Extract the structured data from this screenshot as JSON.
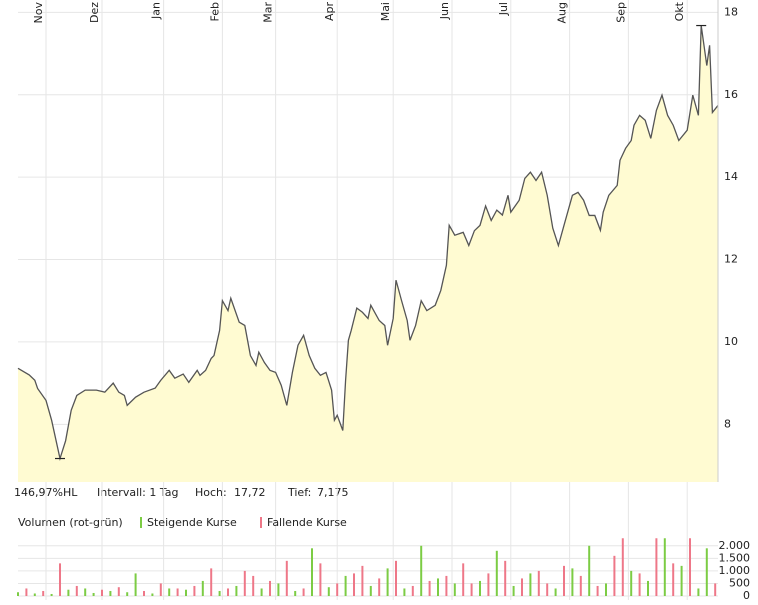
{
  "info": {
    "range": "146,97%HL",
    "interval": "Intervall: 1 Tag",
    "high_label": "Hoch:",
    "high": "17,72",
    "low_label": "Tief:",
    "low": "7,175"
  },
  "chart_data": [
    {
      "type": "area",
      "color": "#555555",
      "fill": "#fffbd2",
      "grid": true,
      "x": [
        0,
        4,
        6,
        7,
        10,
        12,
        15,
        17,
        19,
        21,
        24,
        28,
        31,
        34,
        36,
        38,
        39,
        42,
        45,
        49,
        51,
        54,
        56,
        59,
        61,
        64,
        65,
        67,
        69,
        70,
        72,
        73,
        75,
        76,
        79,
        81,
        83,
        85,
        86,
        88,
        90,
        92,
        94,
        96,
        98,
        100,
        102,
        104,
        106,
        108,
        110,
        112,
        113,
        114,
        116,
        117,
        118,
        119,
        121,
        123,
        125,
        126,
        129,
        131,
        132,
        134,
        135,
        137,
        139,
        140,
        142,
        144,
        146,
        149,
        151,
        153,
        154,
        156,
        159,
        161,
        163,
        165,
        167,
        169,
        171,
        173,
        175,
        176,
        179,
        181,
        183,
        185,
        187,
        189,
        191,
        193,
        195,
        198,
        200,
        202,
        204,
        206,
        208,
        209,
        211,
        214,
        215,
        217,
        219,
        220,
        222,
        224,
        226,
        228,
        230,
        232,
        234,
        236,
        239,
        241,
        243,
        244,
        246,
        247,
        248,
        250
      ],
      "values": [
        9.36,
        9.2,
        9.07,
        8.87,
        8.58,
        8.1,
        7.17,
        7.6,
        8.34,
        8.7,
        8.83,
        8.83,
        8.78,
        9.0,
        8.78,
        8.7,
        8.46,
        8.66,
        8.78,
        8.88,
        9.07,
        9.31,
        9.12,
        9.22,
        9.02,
        9.31,
        9.19,
        9.31,
        9.6,
        9.67,
        10.28,
        11.0,
        10.76,
        11.06,
        10.48,
        10.4,
        9.67,
        9.43,
        9.75,
        9.5,
        9.31,
        9.26,
        8.95,
        8.46,
        9.26,
        9.92,
        10.16,
        9.67,
        9.36,
        9.19,
        9.26,
        8.83,
        8.1,
        8.22,
        7.85,
        9.07,
        10.04,
        10.28,
        10.82,
        10.72,
        10.57,
        10.89,
        10.52,
        10.4,
        9.92,
        10.57,
        11.5,
        11.0,
        10.52,
        10.04,
        10.4,
        11.0,
        10.76,
        10.89,
        11.25,
        11.86,
        12.83,
        12.59,
        12.66,
        12.34,
        12.7,
        12.83,
        13.3,
        12.95,
        13.2,
        13.08,
        13.56,
        13.15,
        13.44,
        13.97,
        14.12,
        13.92,
        14.12,
        13.56,
        12.76,
        12.34,
        12.83,
        13.56,
        13.63,
        13.44,
        13.07,
        13.07,
        12.71,
        13.15,
        13.56,
        13.8,
        14.41,
        14.7,
        14.89,
        15.26,
        15.5,
        15.38,
        14.94,
        15.62,
        15.99,
        15.5,
        15.26,
        14.89,
        15.14,
        15.99,
        15.5,
        17.68,
        16.71,
        17.2,
        15.57,
        15.74
      ],
      "xlim": [
        0,
        250
      ],
      "xticks": [
        {
          "value": 10,
          "label": "Nov"
        },
        {
          "value": 30,
          "label": "Dez"
        },
        {
          "value": 52,
          "label": "Jan"
        },
        {
          "value": 73,
          "label": "Feb"
        },
        {
          "value": 92,
          "label": "Mar"
        },
        {
          "value": 114,
          "label": "Apr"
        },
        {
          "value": 134,
          "label": "Mai"
        },
        {
          "value": 155,
          "label": "Jun"
        },
        {
          "value": 176,
          "label": "Jul"
        },
        {
          "value": 197,
          "label": "Aug"
        },
        {
          "value": 218,
          "label": "Sep"
        },
        {
          "value": 239,
          "label": "Okt"
        }
      ],
      "ylim": [
        6.6,
        18.3
      ],
      "yticks": [
        8,
        10,
        12,
        14,
        16,
        18
      ]
    },
    {
      "type": "bar",
      "title": "Volumen (rot-grün)",
      "grid": true,
      "x": [
        0,
        3,
        6,
        9,
        12,
        15,
        18,
        21,
        24,
        27,
        30,
        33,
        36,
        39,
        42,
        45,
        48,
        51,
        54,
        57,
        60,
        63,
        66,
        69,
        72,
        75,
        78,
        81,
        84,
        87,
        90,
        93,
        96,
        99,
        102,
        105,
        108,
        111,
        114,
        117,
        120,
        123,
        126,
        129,
        132,
        135,
        138,
        141,
        144,
        147,
        150,
        153,
        156,
        159,
        162,
        165,
        168,
        171,
        174,
        177,
        180,
        183,
        186,
        189,
        192,
        195,
        198,
        201,
        204,
        207,
        210,
        213,
        216,
        219,
        222,
        225,
        228,
        231,
        234,
        237,
        240,
        243,
        246,
        249
      ],
      "xlim": [
        0,
        250
      ],
      "series": [
        {
          "name": "Steigende Kurse",
          "color": "#7ccc44",
          "values": [
            150,
            null,
            100,
            null,
            80,
            null,
            250,
            null,
            300,
            120,
            null,
            200,
            null,
            150,
            900,
            null,
            100,
            null,
            300,
            null,
            250,
            null,
            600,
            null,
            200,
            null,
            400,
            null,
            null,
            300,
            null,
            500,
            null,
            200,
            null,
            1900,
            null,
            350,
            null,
            800,
            null,
            null,
            400,
            null,
            1100,
            null,
            300,
            null,
            2000,
            null,
            700,
            null,
            500,
            null,
            null,
            600,
            null,
            1800,
            null,
            400,
            null,
            900,
            null,
            null,
            300,
            null,
            1100,
            null,
            2000,
            null,
            500,
            null,
            null,
            1000,
            null,
            600,
            null,
            2300,
            null,
            1200,
            null,
            300,
            1900,
            null
          ]
        },
        {
          "name": "Fallende Kurse",
          "color": "#ee7788",
          "values": [
            null,
            300,
            null,
            200,
            null,
            1300,
            null,
            400,
            null,
            null,
            250,
            null,
            350,
            null,
            null,
            200,
            null,
            500,
            null,
            300,
            null,
            400,
            null,
            1100,
            null,
            300,
            null,
            1000,
            800,
            null,
            600,
            null,
            1400,
            null,
            300,
            null,
            1300,
            null,
            500,
            null,
            900,
            1200,
            null,
            700,
            null,
            1400,
            null,
            400,
            null,
            600,
            null,
            800,
            null,
            1300,
            500,
            null,
            900,
            null,
            1400,
            null,
            700,
            null,
            1000,
            500,
            null,
            1200,
            null,
            800,
            null,
            400,
            null,
            1600,
            2300,
            null,
            900,
            null,
            2300,
            null,
            1300,
            null,
            2300,
            null,
            null,
            500
          ]
        }
      ],
      "ylim": [
        0,
        2350
      ],
      "yticks": [
        0,
        500,
        {
          "value": 1000,
          "label": "1.000"
        },
        {
          "value": 1500,
          "label": "1.500"
        },
        {
          "value": 2000,
          "label": "2.000"
        }
      ]
    }
  ]
}
